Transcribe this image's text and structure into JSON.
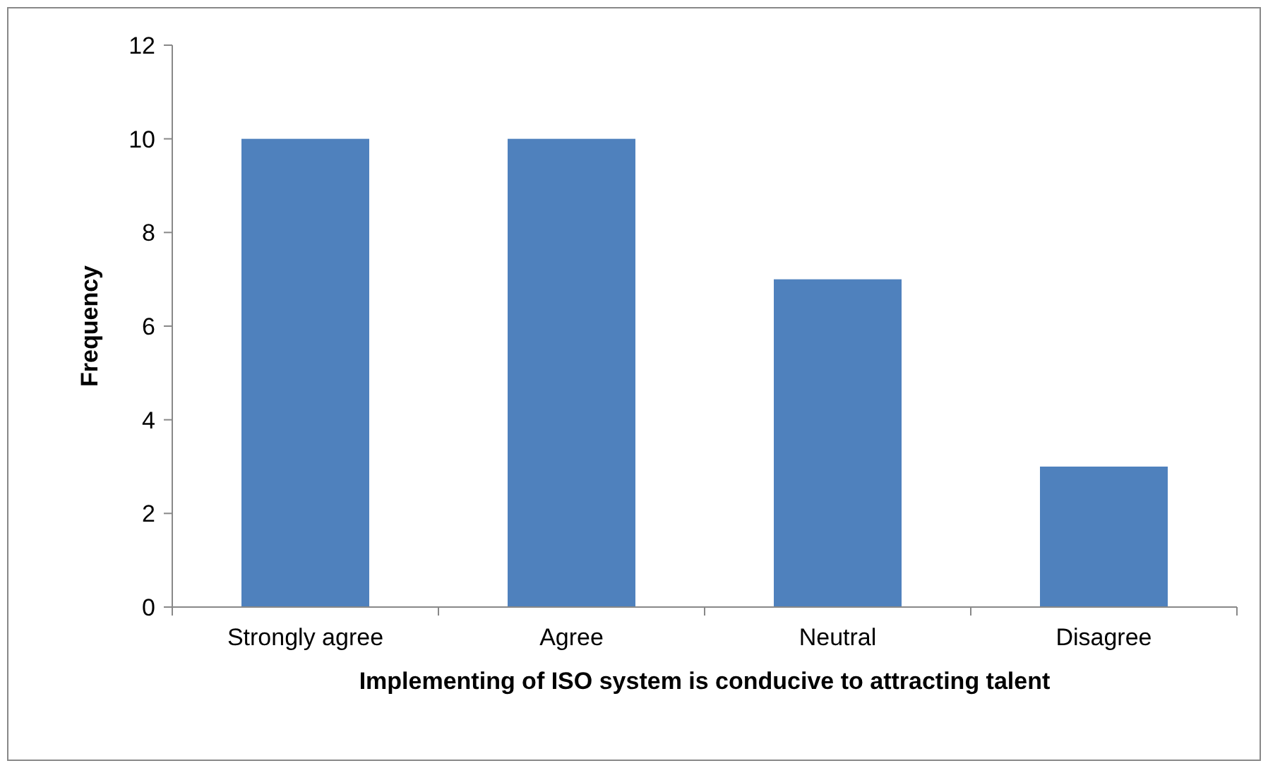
{
  "chart_data": {
    "type": "bar",
    "xlabel": "Implementing of ISO system is conducive to attracting talent",
    "ylabel": "Frequency",
    "categories": [
      "Strongly agree",
      "Agree",
      "Neutral",
      "Disagree"
    ],
    "values": [
      10,
      10,
      7,
      3
    ],
    "color": "#4f81bd",
    "ylim": [
      0,
      12
    ],
    "yticks": [
      0,
      2,
      4,
      6,
      8,
      10,
      12
    ],
    "grid": false
  }
}
